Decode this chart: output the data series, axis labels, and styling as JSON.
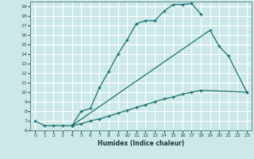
{
  "xlabel": "Humidex (Indice chaleur)",
  "bg_color": "#cce8e8",
  "grid_color": "#ffffff",
  "line_color": "#1a7070",
  "xlim": [
    -0.5,
    23.5
  ],
  "ylim": [
    6,
    19.5
  ],
  "line1_x": [
    0,
    1,
    2,
    3,
    4,
    5,
    6,
    7,
    8,
    9,
    10,
    11,
    12,
    13,
    14,
    15,
    16,
    17,
    18
  ],
  "line1_y": [
    7.0,
    6.5,
    6.5,
    6.5,
    6.5,
    8.0,
    8.3,
    10.5,
    12.2,
    14.0,
    15.5,
    17.2,
    17.5,
    17.5,
    18.5,
    19.2,
    19.2,
    19.3,
    18.2
  ],
  "line2_x": [
    4,
    19,
    20,
    21,
    23
  ],
  "line2_y": [
    6.5,
    16.5,
    14.8,
    13.8,
    10.0
  ],
  "line3_x": [
    4,
    5,
    6,
    7,
    8,
    9,
    10,
    11,
    12,
    13,
    14,
    15,
    16,
    17,
    18,
    23
  ],
  "line3_y": [
    6.5,
    6.7,
    7.0,
    7.2,
    7.5,
    7.8,
    8.1,
    8.4,
    8.7,
    9.0,
    9.3,
    9.5,
    9.8,
    10.0,
    10.2,
    10.0
  ],
  "yticks": [
    6,
    7,
    8,
    9,
    10,
    11,
    12,
    13,
    14,
    15,
    16,
    17,
    18,
    19
  ],
  "xticks": [
    0,
    1,
    2,
    3,
    4,
    5,
    6,
    7,
    8,
    9,
    10,
    11,
    12,
    13,
    14,
    15,
    16,
    17,
    18,
    19,
    20,
    21,
    22,
    23
  ]
}
